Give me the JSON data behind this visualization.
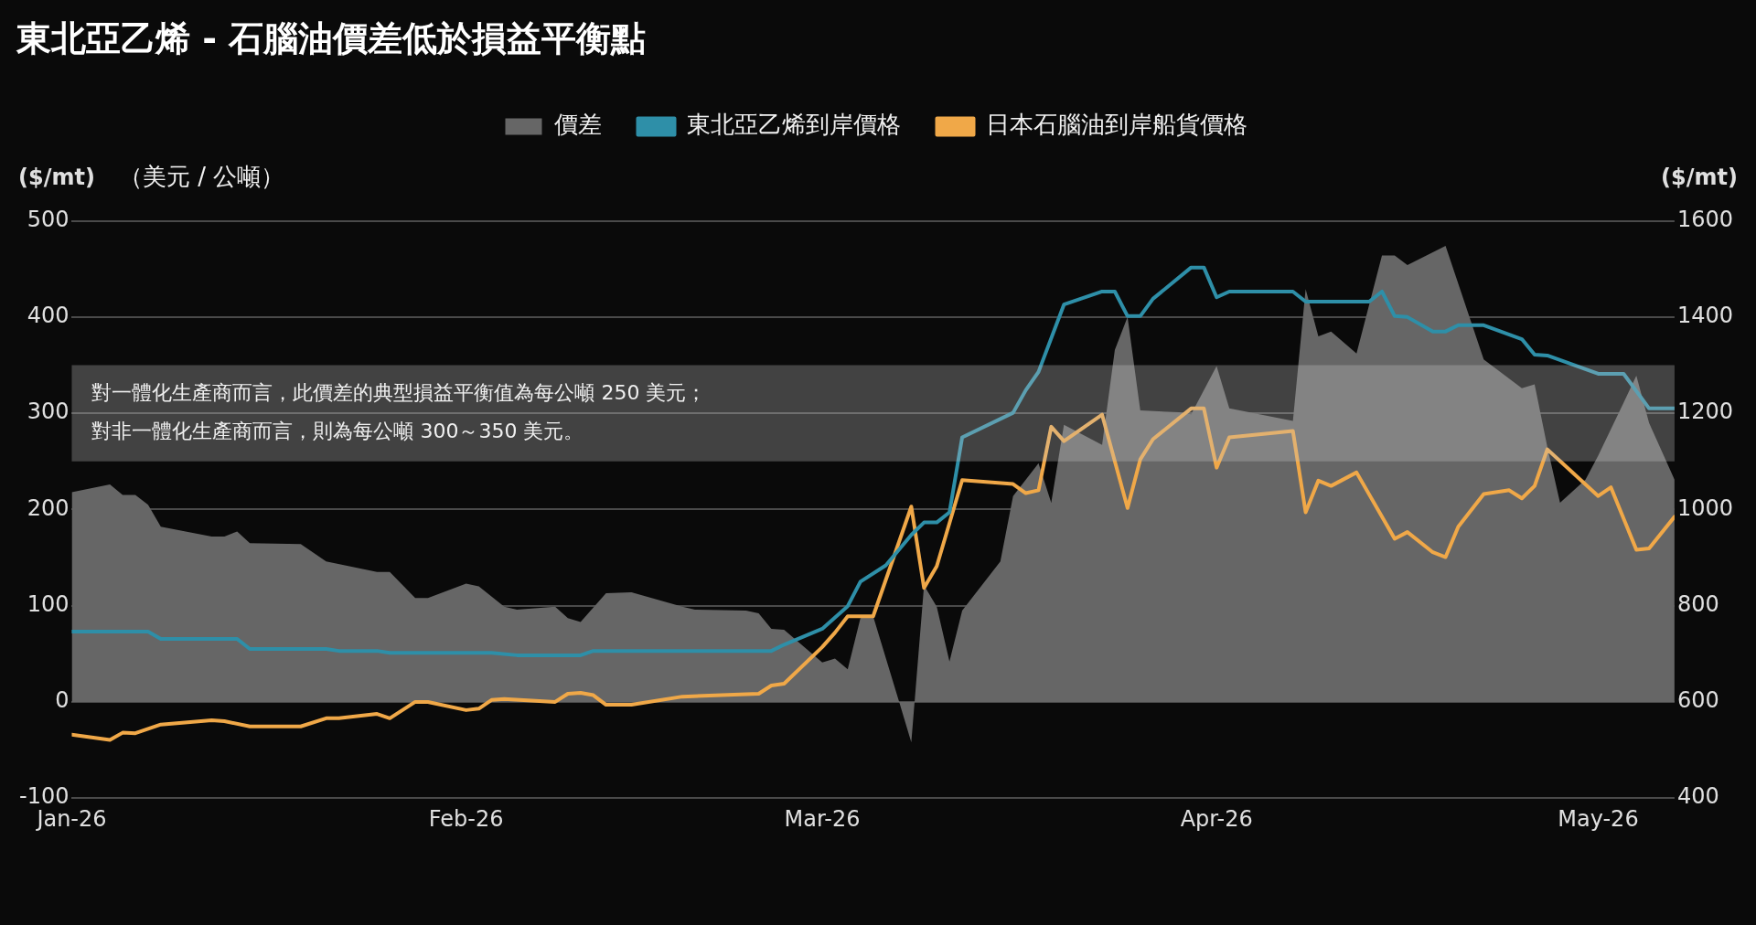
{
  "chart_data": {
    "type": "line",
    "title": "東北亞乙烯 - 石腦油價差低於損益平衡點",
    "subtitle": "（美元 / 公噸）",
    "ylabel": "($/mt)",
    "y2label": "($/mt)",
    "series": [
      {
        "name": "價差",
        "type": "area",
        "color": "#666666",
        "x": [
          "2026-01-01",
          "2026-01-04",
          "2026-01-05",
          "2026-01-06",
          "2026-01-07",
          "2026-01-08",
          "2026-01-12",
          "2026-01-13",
          "2026-01-14",
          "2026-01-15",
          "2026-01-19",
          "2026-01-21",
          "2026-01-25",
          "2026-01-26",
          "2026-01-28",
          "2026-01-29",
          "2026-02-01",
          "2026-02-02",
          "2026-02-04",
          "2026-02-05",
          "2026-02-08",
          "2026-02-09",
          "2026-02-10",
          "2026-02-12",
          "2026-02-14",
          "2026-02-18",
          "2026-02-19",
          "2026-02-23",
          "2026-02-24",
          "2026-02-25",
          "2026-02-26",
          "2026-03-01",
          "2026-03-02",
          "2026-03-03",
          "2026-03-04",
          "2026-03-05",
          "2026-03-07",
          "2026-03-08",
          "2026-03-09",
          "2026-03-10",
          "2026-03-11",
          "2026-03-12",
          "2026-03-15",
          "2026-03-16",
          "2026-03-18",
          "2026-03-19",
          "2026-03-20",
          "2026-03-23",
          "2026-03-24",
          "2026-03-25",
          "2026-03-26",
          "2026-03-29",
          "2026-03-30",
          "2026-04-01",
          "2026-04-02",
          "2026-04-07",
          "2026-04-08",
          "2026-04-09",
          "2026-04-10",
          "2026-04-12",
          "2026-04-14",
          "2026-04-15",
          "2026-04-16",
          "2026-04-19",
          "2026-04-22",
          "2026-04-25",
          "2026-04-26",
          "2026-04-27",
          "2026-04-28",
          "2026-04-30",
          "2026-05-01",
          "2026-05-03",
          "2026-05-04",
          "2026-05-05",
          "2026-05-07"
        ],
        "values": [
          218,
          226,
          215,
          215,
          205,
          182,
          172,
          172,
          177,
          165,
          164,
          146,
          135,
          135,
          108,
          108,
          123,
          120,
          99,
          96,
          99,
          87,
          83,
          113,
          114,
          99,
          96,
          95,
          92,
          76,
          75,
          41,
          45,
          34,
          87,
          89,
          2,
          -42,
          121,
          99,
          42,
          95,
          146,
          214,
          248,
          207,
          288,
          267,
          366,
          400,
          303,
          301,
          299,
          349,
          305,
          292,
          429,
          380,
          385,
          362,
          464,
          464,
          454,
          474,
          356,
          326,
          330,
          265,
          207,
          231,
          256,
          311,
          339,
          290,
          231
        ]
      },
      {
        "name": "東北亞乙烯到岸價格",
        "color": "#2e8fa8",
        "axis": "y2",
        "x": [
          "2026-01-01",
          "2026-01-07",
          "2026-01-08",
          "2026-01-14",
          "2026-01-15",
          "2026-01-21",
          "2026-01-22",
          "2026-01-25",
          "2026-01-26",
          "2026-02-03",
          "2026-02-05",
          "2026-02-10",
          "2026-02-11",
          "2026-02-25",
          "2026-02-26",
          "2026-03-01",
          "2026-03-03",
          "2026-03-04",
          "2026-03-06",
          "2026-03-08",
          "2026-03-09",
          "2026-03-10",
          "2026-03-11",
          "2026-03-12",
          "2026-03-16",
          "2026-03-17",
          "2026-03-18",
          "2026-03-20",
          "2026-03-23",
          "2026-03-24",
          "2026-03-25",
          "2026-03-26",
          "2026-03-27",
          "2026-03-30",
          "2026-03-31",
          "2026-04-01",
          "2026-04-02",
          "2026-04-07",
          "2026-04-08",
          "2026-04-13",
          "2026-04-14",
          "2026-04-15",
          "2026-04-16",
          "2026-04-18",
          "2026-04-19",
          "2026-04-20",
          "2026-04-22",
          "2026-04-25",
          "2026-04-26",
          "2026-04-27",
          "2026-05-01",
          "2026-05-03",
          "2026-05-05",
          "2026-05-07"
        ],
        "values": [
          746,
          746,
          731,
          731,
          710,
          710,
          706,
          706,
          702,
          702,
          697,
          697,
          706,
          706,
          719,
          752,
          799,
          850,
          884,
          947,
          973,
          973,
          994,
          1150,
          1201,
          1248,
          1286,
          1426,
          1453,
          1453,
          1402,
          1402,
          1438,
          1503,
          1503,
          1441,
          1453,
          1453,
          1432,
          1432,
          1453,
          1402,
          1400,
          1370,
          1370,
          1383,
          1383,
          1354,
          1322,
          1320,
          1282,
          1282,
          1210,
          1210
        ]
      },
      {
        "name": "日本石腦油到岸船貨價格",
        "color": "#f0a848",
        "axis": "y2",
        "x": [
          "2026-01-01",
          "2026-01-04",
          "2026-01-05",
          "2026-01-06",
          "2026-01-08",
          "2026-01-12",
          "2026-01-13",
          "2026-01-15",
          "2026-01-19",
          "2026-01-21",
          "2026-01-22",
          "2026-01-25",
          "2026-01-26",
          "2026-01-28",
          "2026-01-29",
          "2026-02-01",
          "2026-02-02",
          "2026-02-03",
          "2026-02-04",
          "2026-02-08",
          "2026-02-09",
          "2026-02-10",
          "2026-02-11",
          "2026-02-12",
          "2026-02-14",
          "2026-02-18",
          "2026-02-24",
          "2026-02-25",
          "2026-02-26",
          "2026-03-01",
          "2026-03-02",
          "2026-03-03",
          "2026-03-05",
          "2026-03-08",
          "2026-03-09",
          "2026-03-10",
          "2026-03-12",
          "2026-03-16",
          "2026-03-17",
          "2026-03-18",
          "2026-03-19",
          "2026-03-20",
          "2026-03-23",
          "2026-03-25",
          "2026-03-26",
          "2026-03-27",
          "2026-03-30",
          "2026-03-31",
          "2026-04-01",
          "2026-04-02",
          "2026-04-07",
          "2026-04-08",
          "2026-04-09",
          "2026-04-10",
          "2026-04-12",
          "2026-04-15",
          "2026-04-16",
          "2026-04-18",
          "2026-04-19",
          "2026-04-20",
          "2026-04-22",
          "2026-04-24",
          "2026-04-25",
          "2026-04-26",
          "2026-04-27",
          "2026-05-01",
          "2026-05-02",
          "2026-05-04",
          "2026-05-05",
          "2026-05-07"
        ],
        "values": [
          532,
          521,
          536,
          535,
          553,
          562,
          560,
          549,
          549,
          566,
          566,
          575,
          566,
          600,
          600,
          583,
          586,
          604,
          606,
          600,
          617,
          619,
          614,
          594,
          594,
          611,
          617,
          634,
          638,
          714,
          744,
          778,
          778,
          1006,
          837,
          882,
          1061,
          1053,
          1034,
          1040,
          1172,
          1142,
          1197,
          1003,
          1104,
          1146,
          1210,
          1210,
          1087,
          1150,
          1163,
          994,
          1060,
          1049,
          1077,
          939,
          953,
          911,
          901,
          964,
          1032,
          1040,
          1023,
          1049,
          1125,
          1028,
          1046,
          916,
          919,
          985
        ]
      }
    ],
    "xlim": [
      "2026-01-01",
      "2026-05-07"
    ],
    "xticks": [
      {
        "value": "2026-01-01",
        "label": "Jan-26"
      },
      {
        "value": "2026-02-01",
        "label": "Feb-26"
      },
      {
        "value": "2026-03-01",
        "label": "Mar-26"
      },
      {
        "value": "2026-04-01",
        "label": "Apr-26"
      },
      {
        "value": "2026-05-01",
        "label": "May-26"
      }
    ],
    "ylim": [
      -100,
      500
    ],
    "yticks": [
      -100,
      0,
      100,
      200,
      300,
      400,
      500
    ],
    "y2lim": [
      400,
      1600
    ],
    "y2ticks": [
      400,
      600,
      800,
      1000,
      1200,
      1400,
      1600
    ],
    "bands": [
      {
        "axis": "y",
        "from": 250,
        "to": 350,
        "color": "#c8c8c8",
        "label": "對一體化生產商而言，此價差的典型損益平衡值為每公噸 250 美元；對非一體化生產商而言，則為每公噸 300～350 美元。"
      }
    ],
    "grid": "y",
    "legend": "top"
  }
}
